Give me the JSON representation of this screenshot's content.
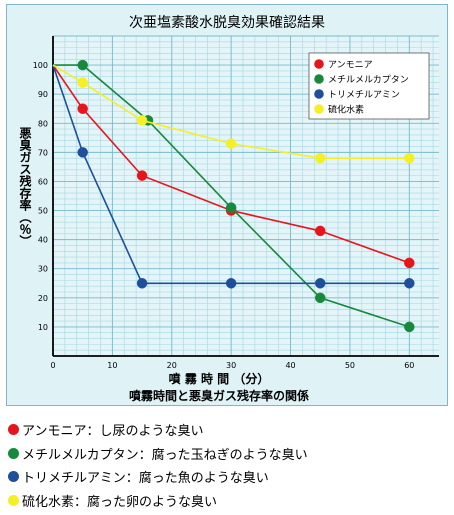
{
  "chart_data": {
    "type": "line",
    "title": "次亜塩素酸水脱臭効果確認結果",
    "subtitle": "噴霧時間と悪臭ガス残存率の関係",
    "xlabel": "噴 霧 時 間 （分）",
    "ylabel": "悪臭ガス残存率（％）",
    "xlim": [
      0,
      65
    ],
    "ylim": [
      0,
      110
    ],
    "x_ticks": [
      0,
      10,
      20,
      30,
      40,
      50,
      60
    ],
    "y_ticks": [
      10,
      20,
      30,
      40,
      50,
      60,
      70,
      80,
      90,
      100
    ],
    "grid": true,
    "legend_position": "top-right",
    "series": [
      {
        "name": "アンモニア",
        "color": "#e8141b",
        "x": [
          0,
          5,
          15,
          30,
          45,
          60
        ],
        "y": [
          100,
          85,
          62,
          50,
          43,
          32
        ]
      },
      {
        "name": "メチルメルカプタン",
        "color": "#16893c",
        "x": [
          0,
          5,
          16,
          30,
          45,
          60
        ],
        "y": [
          100,
          100,
          81,
          51,
          20,
          10
        ]
      },
      {
        "name": "トリメチルアミン",
        "color": "#1d4f9c",
        "x": [
          0,
          5,
          15,
          30,
          45,
          60
        ],
        "y": [
          100,
          70,
          25,
          25,
          25,
          25
        ]
      },
      {
        "name": "硫化水素",
        "color": "#f5ef25",
        "x": [
          0,
          5,
          15,
          30,
          45,
          60
        ],
        "y": [
          100,
          94,
          81,
          73,
          68,
          68
        ]
      }
    ]
  },
  "notes": [
    {
      "color": "#e8141b",
      "text": "アンモニア：し尿のような臭い"
    },
    {
      "color": "#16893c",
      "text": "メチルメルカプタン：腐った玉ねぎのような臭い"
    },
    {
      "color": "#1d4f9c",
      "text": "トリメチルアミン：腐った魚のような臭い"
    },
    {
      "color": "#f5ef25",
      "text": "硫化水素：腐った卵のような臭い"
    }
  ]
}
